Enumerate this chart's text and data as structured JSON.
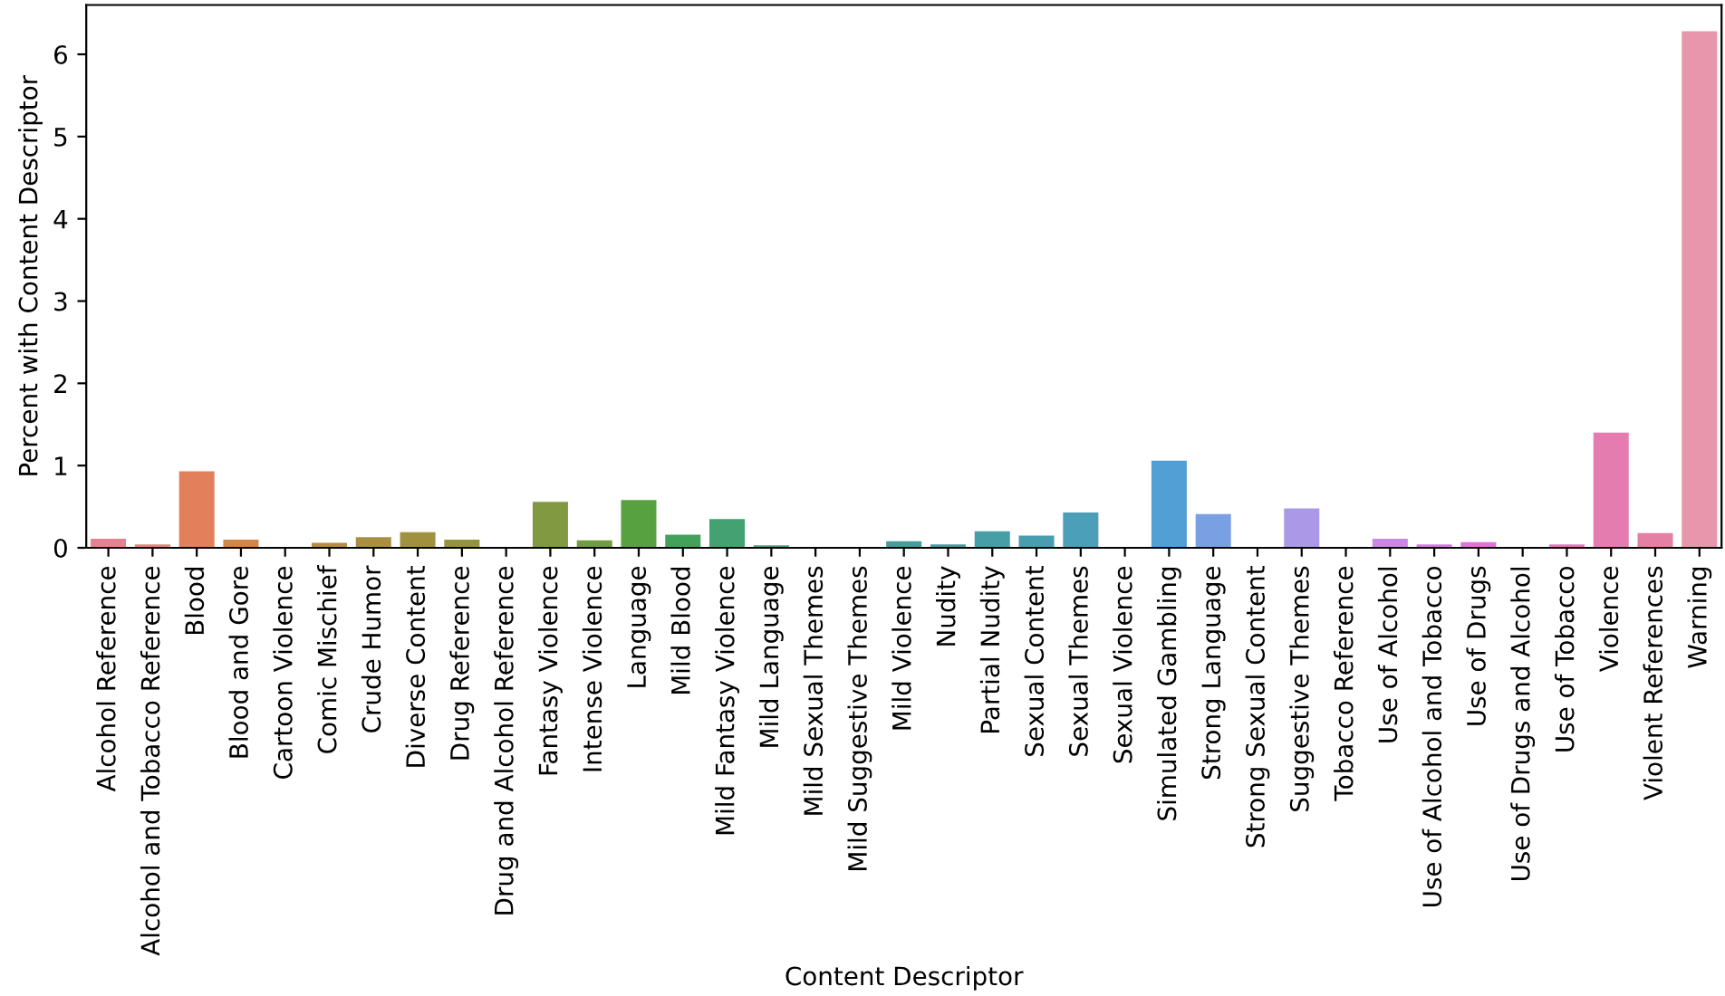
{
  "chart_data": {
    "type": "bar",
    "xlabel": "Content Descriptor",
    "ylabel": "Percent with Content Descriptor",
    "categories": [
      "Alcohol Reference",
      "Alcohol and Tobacco Reference",
      "Blood",
      "Blood and Gore",
      "Cartoon Violence",
      "Comic Mischief",
      "Crude Humor",
      "Diverse Content",
      "Drug Reference",
      "Drug and Alcohol Reference",
      "Fantasy Violence",
      "Intense Violence",
      "Language",
      "Mild Blood",
      "Mild Fantasy Violence",
      "Mild Language",
      "Mild Sexual Themes",
      "Mild Suggestive Themes",
      "Mild Violence",
      "Nudity",
      "Partial Nudity",
      "Sexual Content",
      "Sexual Themes",
      "Sexual Violence",
      "Simulated Gambling",
      "Strong Language",
      "Strong Sexual Content",
      "Suggestive Themes",
      "Tobacco Reference",
      "Use of Alcohol",
      "Use of Alcohol and Tobacco",
      "Use of Drugs",
      "Use of Drugs and Alcohol",
      "Use of Tobacco",
      "Violence",
      "Violent References",
      "Warning"
    ],
    "values": [
      0.11,
      0.04,
      0.93,
      0.1,
      0,
      0.06,
      0.13,
      0.19,
      0.1,
      0,
      0.56,
      0.09,
      0.58,
      0.16,
      0.35,
      0.03,
      0,
      0,
      0.08,
      0.04,
      0.2,
      0.15,
      0.43,
      0,
      1.06,
      0.41,
      0,
      0.48,
      0,
      0.11,
      0.04,
      0.07,
      0,
      0.04,
      1.4,
      0.18,
      6.28
    ],
    "colors": [
      "#e68193",
      "#e68380",
      "#e1805a",
      "#d08549",
      "#c18a46",
      "#b58d44",
      "#aa8f43",
      "#a09141",
      "#969340",
      "#8c9540",
      "#819940",
      "#719c40",
      "#58a141",
      "#42a25c",
      "#43a172",
      "#43a07f",
      "#449f89",
      "#449f91",
      "#459e97",
      "#459d9e",
      "#479ea6",
      "#489eae",
      "#4b9fb8",
      "#4d9fc4",
      "#529fd6",
      "#78a0e3",
      "#979fe7",
      "#ab99e7",
      "#bb91e6",
      "#ca87e5",
      "#d978e2",
      "#e271d8",
      "#e376ca",
      "#e479bd",
      "#e57cb0",
      "#e57fa4",
      "#e896ab"
    ],
    "ylim": [
      0,
      6.6
    ],
    "yticks": [
      0,
      1,
      2,
      3,
      4,
      5,
      6
    ],
    "grid": false,
    "legend": false
  }
}
